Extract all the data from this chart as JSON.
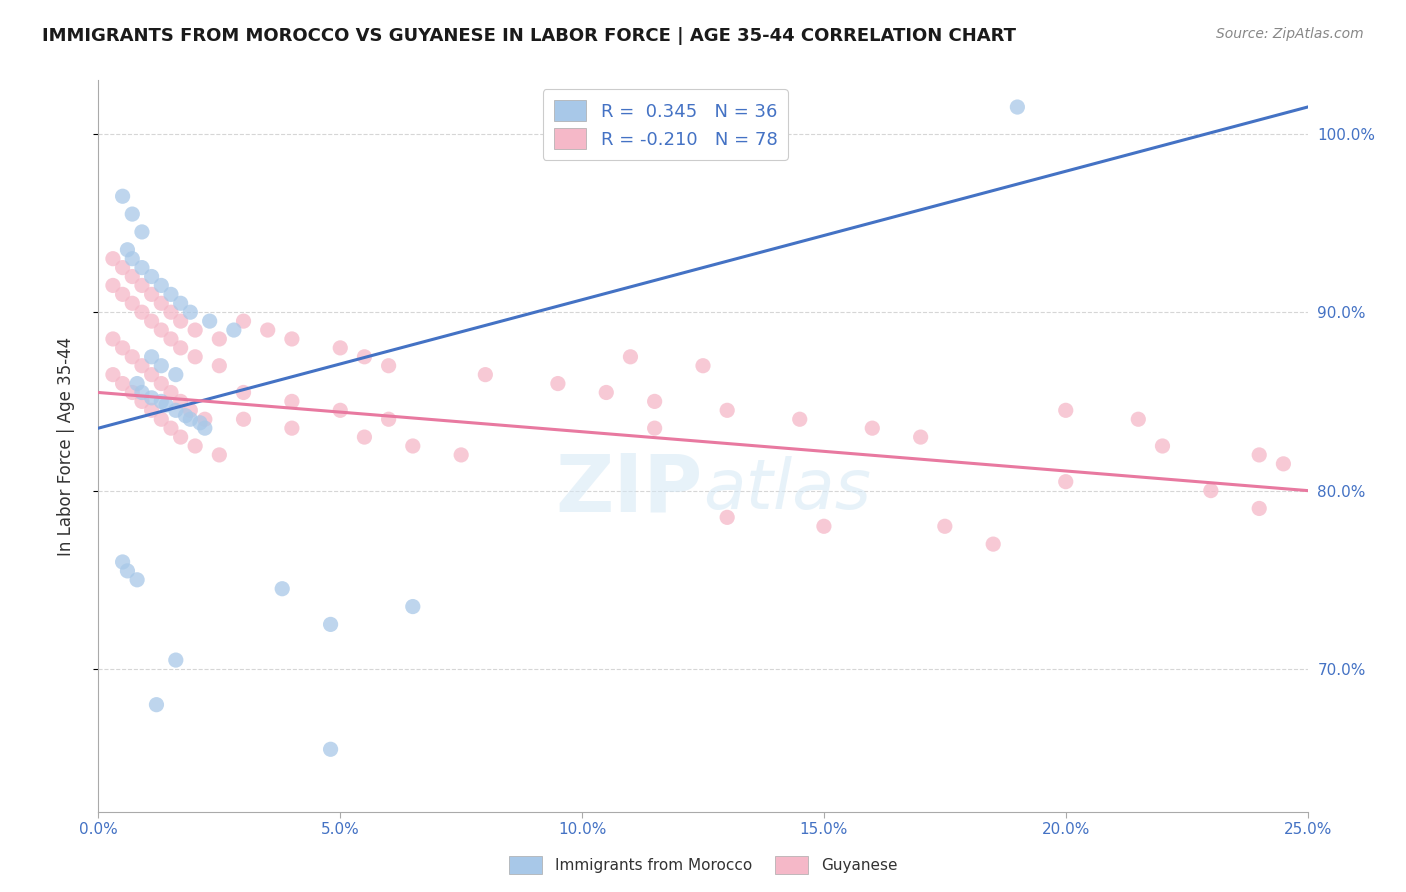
{
  "title": "IMMIGRANTS FROM MOROCCO VS GUYANESE IN LABOR FORCE | AGE 35-44 CORRELATION CHART",
  "source": "Source: ZipAtlas.com",
  "ylabel": "In Labor Force | Age 35-44",
  "x_range": [
    0.0,
    0.25
  ],
  "y_range": [
    62.0,
    103.0
  ],
  "morocco_R": 0.345,
  "morocco_N": 36,
  "guyanese_R": -0.21,
  "guyanese_N": 78,
  "morocco_color": "#a8c8e8",
  "guyanese_color": "#f5b8c8",
  "morocco_line_color": "#4472c4",
  "guyanese_line_color": "#e879a0",
  "background_color": "#ffffff",
  "watermark_color": "#d5e8f5",
  "y_ticks": [
    70.0,
    80.0,
    90.0,
    100.0
  ],
  "x_ticks": [
    0.0,
    0.05,
    0.1,
    0.15,
    0.2,
    0.25
  ],
  "morocco_line_x0": 0.0,
  "morocco_line_y0": 83.5,
  "morocco_line_x1": 0.25,
  "morocco_line_y1": 101.5,
  "guyanese_line_x0": 0.0,
  "guyanese_line_y0": 85.5,
  "guyanese_line_x1": 0.25,
  "guyanese_line_y1": 80.0,
  "morocco_scatter_x": [
    0.008,
    0.009,
    0.011,
    0.013,
    0.014,
    0.016,
    0.018,
    0.019,
    0.021,
    0.022,
    0.006,
    0.007,
    0.009,
    0.011,
    0.013,
    0.015,
    0.017,
    0.019,
    0.023,
    0.028,
    0.005,
    0.007,
    0.009,
    0.011,
    0.013,
    0.016,
    0.038,
    0.048,
    0.065,
    0.005,
    0.006,
    0.008,
    0.012,
    0.016,
    0.048,
    0.19
  ],
  "morocco_scatter_y": [
    86.0,
    85.5,
    85.2,
    85.0,
    84.8,
    84.5,
    84.2,
    84.0,
    83.8,
    83.5,
    93.5,
    93.0,
    92.5,
    92.0,
    91.5,
    91.0,
    90.5,
    90.0,
    89.5,
    89.0,
    96.5,
    95.5,
    94.5,
    87.5,
    87.0,
    86.5,
    74.5,
    72.5,
    73.5,
    76.0,
    75.5,
    75.0,
    68.0,
    70.5,
    65.5,
    101.5
  ],
  "guyanese_scatter_x": [
    0.003,
    0.005,
    0.007,
    0.009,
    0.011,
    0.013,
    0.015,
    0.017,
    0.019,
    0.022,
    0.003,
    0.005,
    0.007,
    0.009,
    0.011,
    0.013,
    0.015,
    0.017,
    0.02,
    0.025,
    0.003,
    0.005,
    0.007,
    0.009,
    0.011,
    0.013,
    0.015,
    0.017,
    0.02,
    0.025,
    0.003,
    0.005,
    0.007,
    0.009,
    0.011,
    0.013,
    0.015,
    0.017,
    0.02,
    0.025,
    0.03,
    0.035,
    0.04,
    0.05,
    0.055,
    0.06,
    0.03,
    0.04,
    0.055,
    0.065,
    0.075,
    0.03,
    0.04,
    0.05,
    0.06,
    0.08,
    0.095,
    0.105,
    0.115,
    0.13,
    0.145,
    0.16,
    0.11,
    0.125,
    0.2,
    0.215,
    0.13,
    0.15,
    0.2,
    0.17,
    0.22,
    0.24,
    0.245,
    0.115,
    0.175,
    0.185,
    0.23,
    0.24
  ],
  "guyanese_scatter_y": [
    88.5,
    88.0,
    87.5,
    87.0,
    86.5,
    86.0,
    85.5,
    85.0,
    84.5,
    84.0,
    93.0,
    92.5,
    92.0,
    91.5,
    91.0,
    90.5,
    90.0,
    89.5,
    89.0,
    88.5,
    86.5,
    86.0,
    85.5,
    85.0,
    84.5,
    84.0,
    83.5,
    83.0,
    82.5,
    82.0,
    91.5,
    91.0,
    90.5,
    90.0,
    89.5,
    89.0,
    88.5,
    88.0,
    87.5,
    87.0,
    89.5,
    89.0,
    88.5,
    88.0,
    87.5,
    87.0,
    84.0,
    83.5,
    83.0,
    82.5,
    82.0,
    85.5,
    85.0,
    84.5,
    84.0,
    86.5,
    86.0,
    85.5,
    85.0,
    84.5,
    84.0,
    83.5,
    87.5,
    87.0,
    84.5,
    84.0,
    78.5,
    78.0,
    80.5,
    83.0,
    82.5,
    82.0,
    81.5,
    83.5,
    78.0,
    77.0,
    80.0,
    79.0
  ]
}
